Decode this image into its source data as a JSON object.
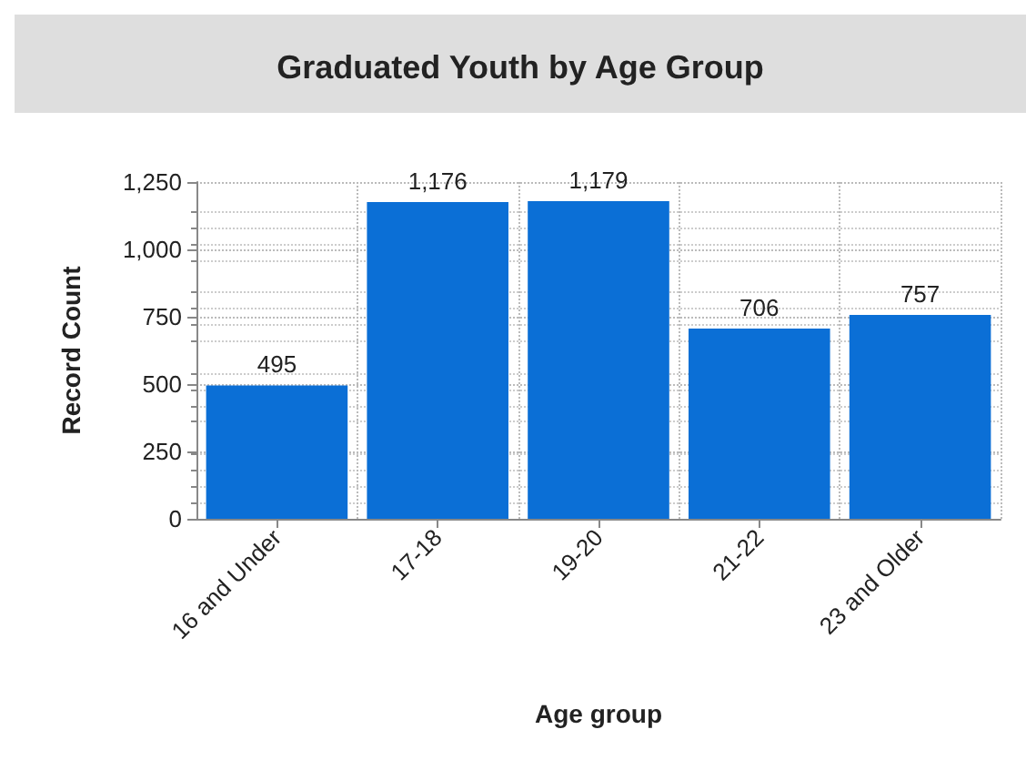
{
  "chart_data": {
    "type": "bar",
    "title": "Graduated Youth by Age Group",
    "xlabel": "Age group",
    "ylabel": "Record Count",
    "categories": [
      "16 and Under",
      "17-18",
      "19-20",
      "21-22",
      "23 and Older"
    ],
    "values": [
      495,
      1176,
      1179,
      706,
      757
    ],
    "value_labels": [
      "495",
      "1,176",
      "1,179",
      "706",
      "757"
    ],
    "color": "#0b6fd6",
    "ylim": [
      0,
      1250
    ],
    "yticks": [
      0,
      250,
      500,
      750,
      {
        "value": 1000,
        "label": "1,000"
      },
      {
        "value": 1250,
        "label": "1,250"
      }
    ],
    "grid": true
  }
}
